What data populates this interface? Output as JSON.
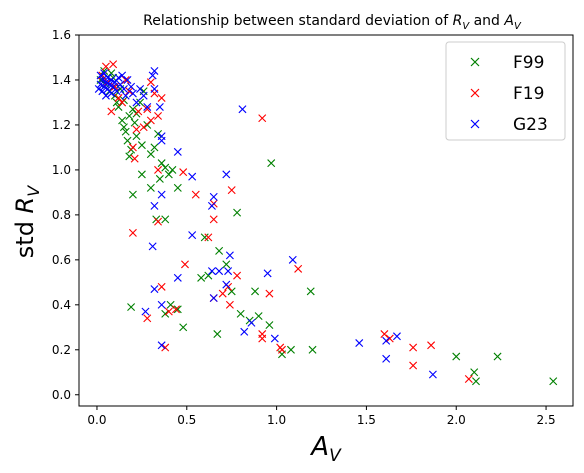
{
  "chart_data": {
    "type": "scatter",
    "title_prefix": "Relationship between standard deviation of ",
    "title_sym1": "R",
    "title_sub1": "V",
    "title_mid": " and ",
    "title_sym2": "A",
    "title_sub2": "V",
    "xlabel_sym": "A",
    "xlabel_sub": "V",
    "ylabel_prefix": "std ",
    "ylabel_sym": "R",
    "ylabel_sub": "V",
    "xlim": [
      -0.1,
      2.65
    ],
    "ylim": [
      -0.05,
      1.6
    ],
    "xticks": [
      0.0,
      0.5,
      1.0,
      1.5,
      2.0,
      2.5
    ],
    "xtick_labels": [
      "0.0",
      "0.5",
      "1.0",
      "1.5",
      "2.0",
      "2.5"
    ],
    "yticks": [
      0.0,
      0.2,
      0.4,
      0.6,
      0.8,
      1.0,
      1.2,
      1.4,
      1.6
    ],
    "ytick_labels": [
      "0.0",
      "0.2",
      "0.4",
      "0.6",
      "0.8",
      "1.0",
      "1.2",
      "1.4",
      "1.6"
    ],
    "legend_position": "top-right",
    "series": [
      {
        "name": "F99",
        "color": "#008000",
        "marker": "x",
        "points": [
          [
            0.02,
            1.4
          ],
          [
            0.04,
            1.44
          ],
          [
            0.05,
            1.38
          ],
          [
            0.07,
            1.35
          ],
          [
            0.08,
            1.43
          ],
          [
            0.09,
            1.41
          ],
          [
            0.1,
            1.33
          ],
          [
            0.11,
            1.3
          ],
          [
            0.12,
            1.28
          ],
          [
            0.13,
            1.36
          ],
          [
            0.14,
            1.22
          ],
          [
            0.15,
            1.19
          ],
          [
            0.16,
            1.17
          ],
          [
            0.17,
            1.13
          ],
          [
            0.18,
            1.24
          ],
          [
            0.19,
            1.09
          ],
          [
            0.2,
            1.27
          ],
          [
            0.21,
            1.21
          ],
          [
            0.22,
            1.15
          ],
          [
            0.24,
            1.3
          ],
          [
            0.25,
            1.11
          ],
          [
            0.26,
            1.35
          ],
          [
            0.28,
            1.2
          ],
          [
            0.3,
            1.07
          ],
          [
            0.32,
            1.1
          ],
          [
            0.34,
            1.16
          ],
          [
            0.36,
            1.03
          ],
          [
            0.38,
            1.01
          ],
          [
            0.4,
            0.98
          ],
          [
            0.45,
            0.92
          ],
          [
            0.25,
            0.98
          ],
          [
            0.3,
            0.92
          ],
          [
            0.2,
            0.89
          ],
          [
            0.35,
            0.96
          ],
          [
            0.42,
            1.0
          ],
          [
            0.33,
            0.78
          ],
          [
            0.38,
            0.78
          ],
          [
            0.6,
            0.7
          ],
          [
            0.68,
            0.64
          ],
          [
            0.78,
            0.81
          ],
          [
            0.97,
            1.03
          ],
          [
            0.72,
            0.58
          ],
          [
            0.58,
            0.52
          ],
          [
            0.62,
            0.53
          ],
          [
            0.88,
            0.46
          ],
          [
            0.19,
            0.39
          ],
          [
            0.41,
            0.4
          ],
          [
            0.45,
            0.38
          ],
          [
            0.38,
            0.36
          ],
          [
            0.48,
            0.3
          ],
          [
            0.67,
            0.27
          ],
          [
            0.75,
            0.46
          ],
          [
            0.8,
            0.36
          ],
          [
            0.85,
            0.33
          ],
          [
            0.9,
            0.35
          ],
          [
            0.96,
            0.31
          ],
          [
            1.03,
            0.18
          ],
          [
            1.08,
            0.2
          ],
          [
            1.19,
            0.46
          ],
          [
            1.2,
            0.2
          ],
          [
            2.0,
            0.17
          ],
          [
            2.1,
            0.1
          ],
          [
            2.11,
            0.06
          ],
          [
            2.23,
            0.17
          ],
          [
            2.54,
            0.06
          ],
          [
            0.18,
            1.06
          ],
          [
            0.22,
            1.25
          ],
          [
            0.15,
            1.31
          ]
        ]
      },
      {
        "name": "F19",
        "color": "#ff0000",
        "marker": "x",
        "points": [
          [
            0.03,
            1.42
          ],
          [
            0.05,
            1.46
          ],
          [
            0.06,
            1.39
          ],
          [
            0.08,
            1.26
          ],
          [
            0.09,
            1.47
          ],
          [
            0.1,
            1.37
          ],
          [
            0.12,
            1.32
          ],
          [
            0.14,
            1.3
          ],
          [
            0.16,
            1.4
          ],
          [
            0.18,
            1.35
          ],
          [
            0.2,
            1.1
          ],
          [
            0.21,
            1.05
          ],
          [
            0.23,
            1.26
          ],
          [
            0.26,
            1.19
          ],
          [
            0.28,
            1.27
          ],
          [
            0.3,
            1.39
          ],
          [
            0.32,
            1.34
          ],
          [
            0.34,
            1.24
          ],
          [
            0.36,
            1.32
          ],
          [
            0.3,
            1.22
          ],
          [
            0.2,
            0.72
          ],
          [
            0.34,
            0.77
          ],
          [
            0.34,
            1.0
          ],
          [
            0.48,
            0.99
          ],
          [
            0.55,
            0.89
          ],
          [
            0.62,
            0.7
          ],
          [
            0.65,
            0.78
          ],
          [
            0.65,
            0.85
          ],
          [
            0.75,
            0.91
          ],
          [
            0.73,
            0.48
          ],
          [
            0.7,
            0.45
          ],
          [
            0.78,
            0.53
          ],
          [
            0.92,
            1.23
          ],
          [
            1.12,
            0.56
          ],
          [
            0.49,
            0.58
          ],
          [
            0.36,
            0.48
          ],
          [
            0.4,
            0.37
          ],
          [
            0.44,
            0.38
          ],
          [
            0.28,
            0.34
          ],
          [
            0.38,
            0.21
          ],
          [
            0.65,
            0.43
          ],
          [
            0.74,
            0.4
          ],
          [
            0.92,
            0.27
          ],
          [
            0.92,
            0.25
          ],
          [
            0.96,
            0.45
          ],
          [
            1.02,
            0.21
          ],
          [
            1.03,
            0.2
          ],
          [
            1.6,
            0.27
          ],
          [
            1.63,
            0.25
          ],
          [
            1.76,
            0.21
          ],
          [
            1.76,
            0.13
          ],
          [
            1.86,
            0.22
          ],
          [
            2.07,
            0.07
          ],
          [
            0.22,
            1.18
          ]
        ]
      },
      {
        "name": "G23",
        "color": "#0000ff",
        "marker": "x",
        "points": [
          [
            0.01,
            1.36
          ],
          [
            0.02,
            1.38
          ],
          [
            0.02,
            1.42
          ],
          [
            0.03,
            1.35
          ],
          [
            0.03,
            1.4
          ],
          [
            0.04,
            1.37
          ],
          [
            0.04,
            1.43
          ],
          [
            0.05,
            1.33
          ],
          [
            0.05,
            1.39
          ],
          [
            0.06,
            1.41
          ],
          [
            0.06,
            1.36
          ],
          [
            0.07,
            1.38
          ],
          [
            0.08,
            1.34
          ],
          [
            0.08,
            1.4
          ],
          [
            0.09,
            1.37
          ],
          [
            0.1,
            1.39
          ],
          [
            0.11,
            1.35
          ],
          [
            0.12,
            1.41
          ],
          [
            0.13,
            1.38
          ],
          [
            0.14,
            1.42
          ],
          [
            0.15,
            1.36
          ],
          [
            0.16,
            1.33
          ],
          [
            0.17,
            1.4
          ],
          [
            0.19,
            1.37
          ],
          [
            0.2,
            1.34
          ],
          [
            0.22,
            1.3
          ],
          [
            0.24,
            1.36
          ],
          [
            0.26,
            1.33
          ],
          [
            0.28,
            1.28
          ],
          [
            0.31,
            1.42
          ],
          [
            0.32,
            1.36
          ],
          [
            0.32,
            1.44
          ],
          [
            0.35,
            1.28
          ],
          [
            0.36,
            1.15
          ],
          [
            0.36,
            1.13
          ],
          [
            0.45,
            1.08
          ],
          [
            0.32,
            0.84
          ],
          [
            0.36,
            0.89
          ],
          [
            0.53,
            0.97
          ],
          [
            0.65,
            0.88
          ],
          [
            0.72,
            0.98
          ],
          [
            0.81,
            1.27
          ],
          [
            0.64,
            0.84
          ],
          [
            0.53,
            0.71
          ],
          [
            0.74,
            0.62
          ],
          [
            0.31,
            0.66
          ],
          [
            0.64,
            0.55
          ],
          [
            0.68,
            0.55
          ],
          [
            0.73,
            0.55
          ],
          [
            0.95,
            0.54
          ],
          [
            1.09,
            0.6
          ],
          [
            0.45,
            0.52
          ],
          [
            0.32,
            0.47
          ],
          [
            0.36,
            0.4
          ],
          [
            0.27,
            0.37
          ],
          [
            0.36,
            0.22
          ],
          [
            0.65,
            0.43
          ],
          [
            0.82,
            0.28
          ],
          [
            0.86,
            0.32
          ],
          [
            0.99,
            0.25
          ],
          [
            1.46,
            0.23
          ],
          [
            1.61,
            0.16
          ],
          [
            1.61,
            0.24
          ],
          [
            1.67,
            0.26
          ],
          [
            1.87,
            0.09
          ],
          [
            0.72,
            0.49
          ]
        ]
      }
    ]
  }
}
